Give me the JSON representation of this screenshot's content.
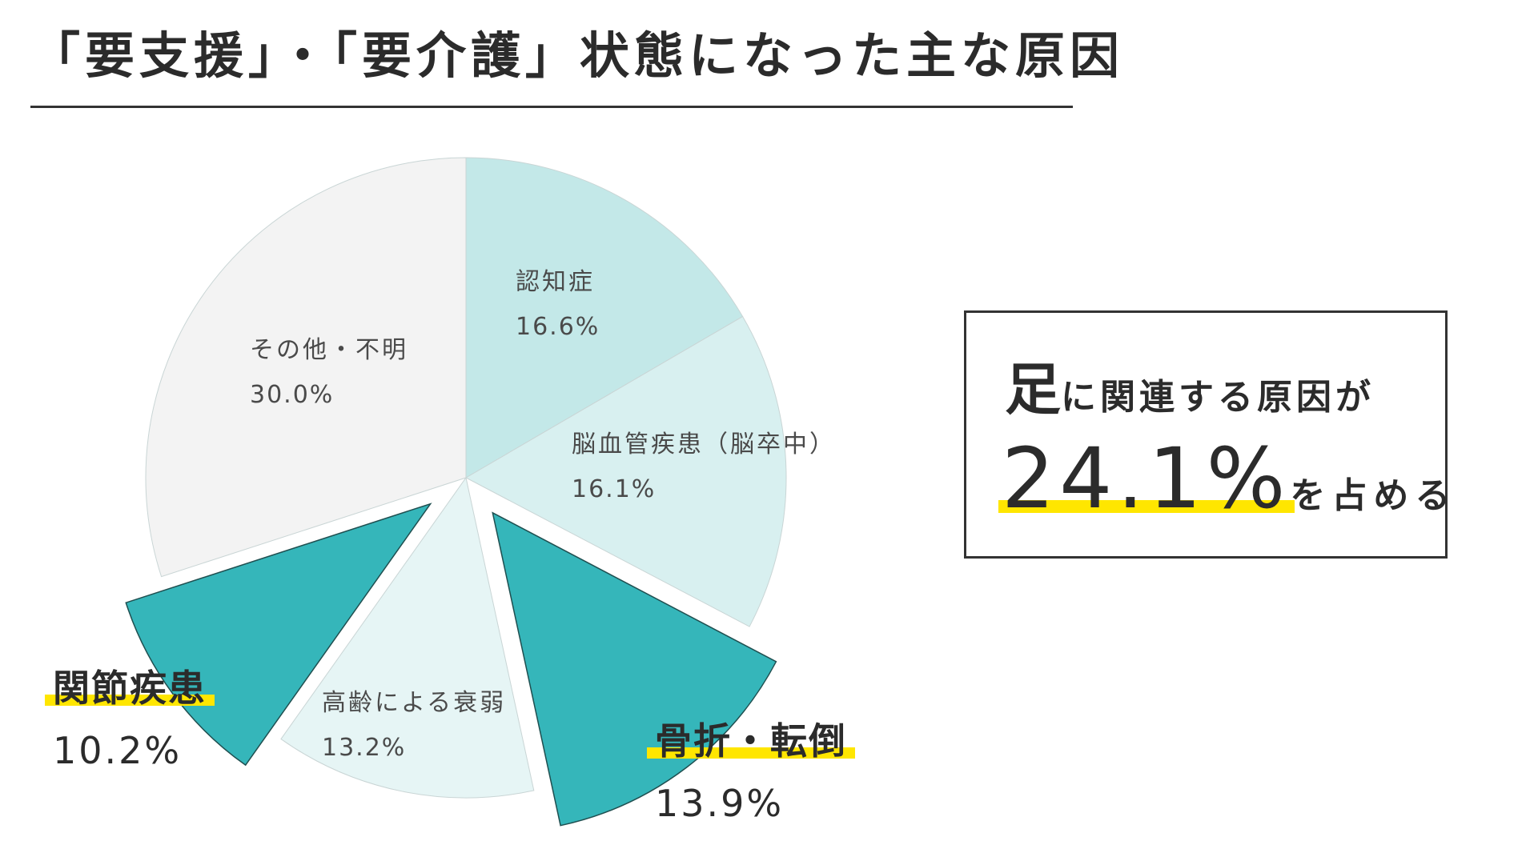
{
  "title": "「要支援」・「要介護」状態になった主な原因",
  "chart_data": {
    "type": "pie",
    "title": "「要支援」・「要介護」状態になった主な原因",
    "unit": "%",
    "slices": [
      {
        "name": "認知症",
        "value": 16.6,
        "label": "16.6%",
        "color": "#c3e8e8",
        "exploded": false,
        "highlight": false
      },
      {
        "name": "脳血管疾患（脳卒中）",
        "value": 16.1,
        "label": "16.1%",
        "color": "#d8f0f0",
        "exploded": false,
        "highlight": false
      },
      {
        "name": "骨折・転倒",
        "value": 13.9,
        "label": "13.9%",
        "color": "#35b6ba",
        "exploded": true,
        "highlight": true
      },
      {
        "name": "高齢による衰弱",
        "value": 13.2,
        "label": "13.2%",
        "color": "#e6f5f5",
        "exploded": false,
        "highlight": false
      },
      {
        "name": "関節疾患",
        "value": 10.2,
        "label": "10.2%",
        "color": "#35b6ba",
        "exploded": true,
        "highlight": true
      },
      {
        "name": "その他・不明",
        "value": 30.0,
        "label": "30.0%",
        "color": "#f3f3f3",
        "exploded": false,
        "highlight": false
      }
    ]
  },
  "callout": {
    "big_char": "足",
    "line1_rest": "に関連する原因が",
    "value": "24.1%",
    "line2_tail": "を占める",
    "highlight_color": "#ffe600"
  }
}
